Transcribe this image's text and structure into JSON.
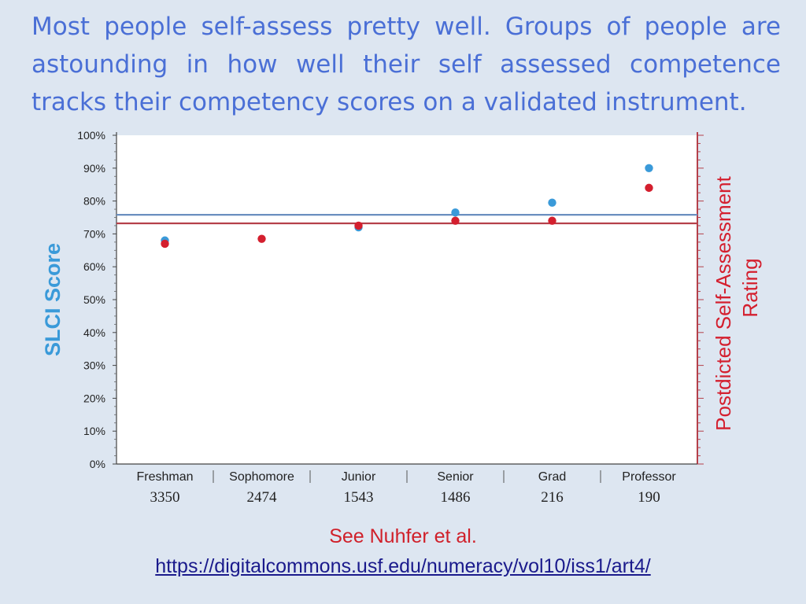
{
  "heading": "Most people self-assess pretty well. Groups of people are astounding in how well their self assessed competence tracks their competency scores on a validated instrument.",
  "citation": "See Nuhfer et al.",
  "citation_link": "https://digitalcommons.usf.edu/numeracy/vol10/iss1/art4/",
  "colors": {
    "slci": "#3a9ad9",
    "self_assessment": "#d41f2e",
    "slci_mean_line": "#6a8fbf",
    "self_assessment_mean_line": "#b5404a",
    "plot_background": "#ffffff"
  },
  "chart_data": {
    "type": "scatter",
    "categories": [
      "Freshman",
      "Sophomore",
      "Junior",
      "Senior",
      "Grad",
      "Professor"
    ],
    "category_counts": [
      "3350",
      "2474",
      "1543",
      "1486",
      "216",
      "190"
    ],
    "ylabel_left": "SLCI Score",
    "ylabel_right_line1": "Postdicted Self-Assessment",
    "ylabel_right_line2": "Rating",
    "ylim": [
      0,
      100
    ],
    "y_ticks": [
      "0%",
      "10%",
      "20%",
      "30%",
      "40%",
      "50%",
      "60%",
      "70%",
      "80%",
      "90%",
      "100%"
    ],
    "series": [
      {
        "values": [
          68,
          null,
          72,
          76.5,
          79.5,
          90
        ]
      },
      {
        "values": [
          67,
          68.5,
          72.5,
          74,
          74,
          84
        ]
      }
    ],
    "reference_lines": [
      75.8,
      73.2
    ],
    "grid": false
  }
}
